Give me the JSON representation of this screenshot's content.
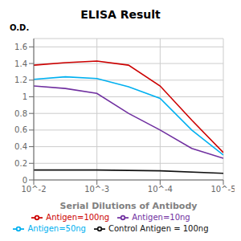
{
  "chart_data": {
    "type": "line",
    "title": "ELISA Result",
    "xlabel": "Serial Dilutions of Antibody",
    "ylabel": "O.D.",
    "xlim": [
      0,
      3
    ],
    "xticks": [
      {
        "value": 0,
        "label": "10^-2"
      },
      {
        "value": 1,
        "label": "10^-3"
      },
      {
        "value": 2,
        "label": "10^-4"
      },
      {
        "value": 3,
        "label": "10^-5"
      }
    ],
    "ylim": [
      0,
      1.7
    ],
    "yticks": [
      0,
      0.2,
      0.4,
      0.6,
      0.8,
      1,
      1.2,
      1.4,
      1.6
    ],
    "grid": true,
    "series": [
      {
        "name": "Control Antigen = 100ng",
        "color": "#111111",
        "x": [
          0,
          1,
          2,
          3
        ],
        "values": [
          0.12,
          0.12,
          0.11,
          0.08
        ]
      },
      {
        "name": "Antigen=10ng",
        "color": "#7030A0",
        "x": [
          0,
          0.5,
          1,
          1.5,
          2,
          2.5,
          3
        ],
        "values": [
          1.13,
          1.1,
          1.04,
          0.8,
          0.6,
          0.38,
          0.26
        ]
      },
      {
        "name": "Antigen=50ng",
        "color": "#00B0F0",
        "x": [
          0,
          0.5,
          1,
          1.5,
          2,
          2.5,
          3
        ],
        "values": [
          1.21,
          1.24,
          1.22,
          1.12,
          0.98,
          0.6,
          0.3
        ]
      },
      {
        "name": "Antigen=100ng",
        "color": "#CC0000",
        "x": [
          0,
          0.5,
          1,
          1.5,
          2,
          2.5,
          3
        ],
        "values": [
          1.38,
          1.41,
          1.43,
          1.38,
          1.13,
          0.72,
          0.33
        ]
      }
    ]
  }
}
